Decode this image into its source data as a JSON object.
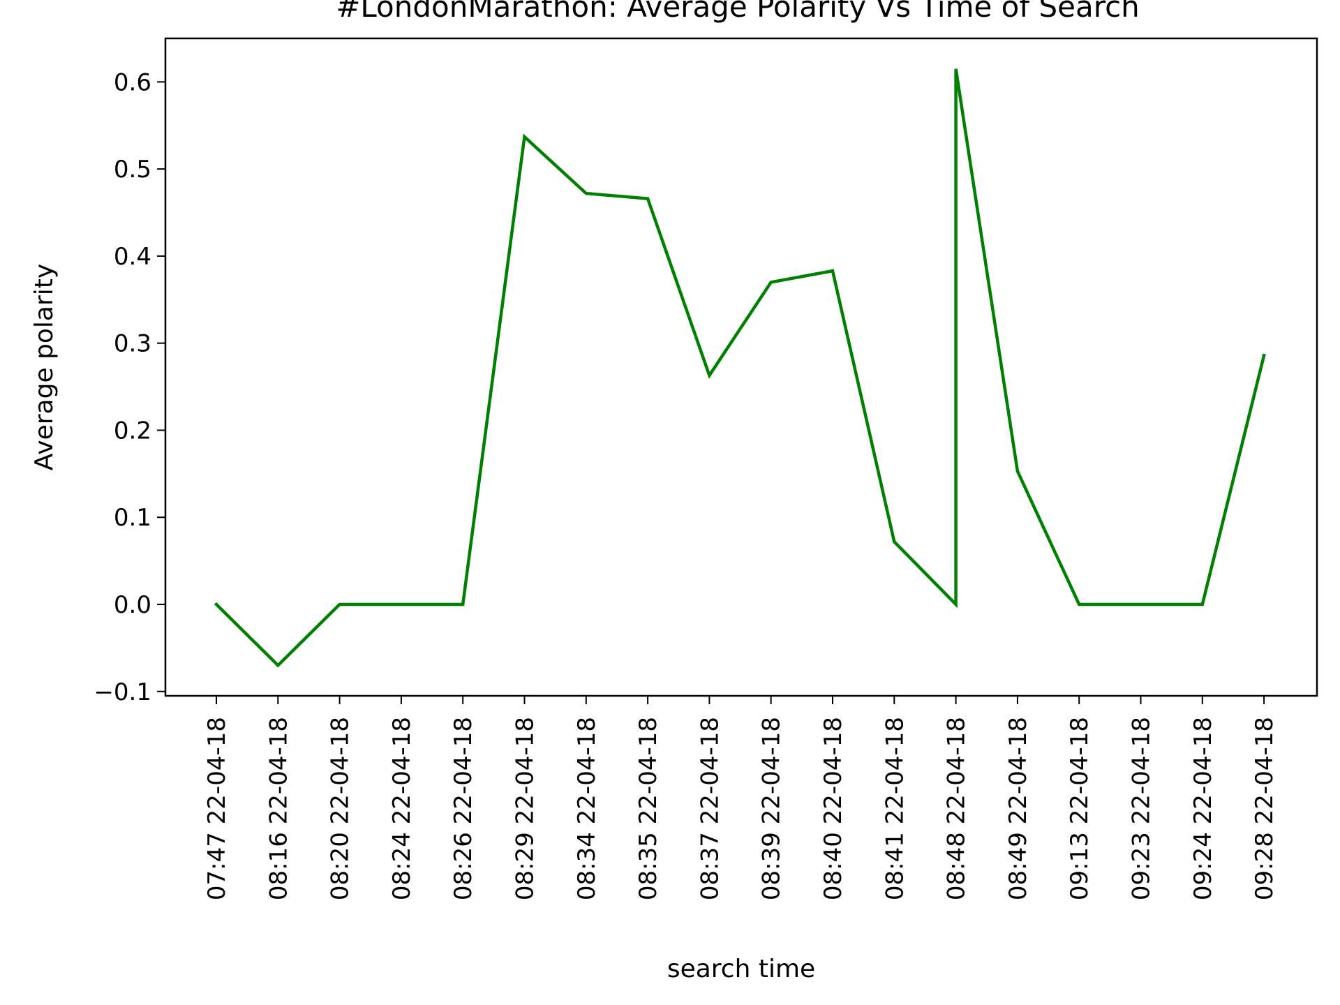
{
  "chart_data": {
    "type": "line",
    "title": "#LondonMarathon: Average Polarity Vs Time of Search",
    "xlabel": "search time",
    "ylabel": "Average polarity",
    "categories": [
      "07:47 22-04-18",
      "08:16 22-04-18",
      "08:20 22-04-18",
      "08:24 22-04-18",
      "08:26 22-04-18",
      "08:29 22-04-18",
      "08:34 22-04-18",
      "08:35 22-04-18",
      "08:37 22-04-18",
      "08:39 22-04-18",
      "08:40 22-04-18",
      "08:41 22-04-18",
      "08:48 22-04-18",
      "08:49 22-04-18",
      "09:13 22-04-18",
      "09:23 22-04-18",
      "09:24 22-04-18",
      "09:28 22-04-18"
    ],
    "points": [
      {
        "x": "07:47 22-04-18",
        "y": 0.0
      },
      {
        "x": "08:16 22-04-18",
        "y": -0.07
      },
      {
        "x": "08:20 22-04-18",
        "y": 0.0
      },
      {
        "x": "08:24 22-04-18",
        "y": 0.0
      },
      {
        "x": "08:26 22-04-18",
        "y": 0.0
      },
      {
        "x": "08:29 22-04-18",
        "y": 0.537
      },
      {
        "x": "08:34 22-04-18",
        "y": 0.472
      },
      {
        "x": "08:35 22-04-18",
        "y": 0.466
      },
      {
        "x": "08:37 22-04-18",
        "y": 0.263
      },
      {
        "x": "08:39 22-04-18",
        "y": 0.37
      },
      {
        "x": "08:40 22-04-18",
        "y": 0.383
      },
      {
        "x": "08:41 22-04-18",
        "y": 0.072
      },
      {
        "x": "08:48 22-04-18",
        "y": 0.0
      },
      {
        "x": "08:48 22-04-18",
        "y": 0.615
      },
      {
        "x": "08:49 22-04-18",
        "y": 0.153
      },
      {
        "x": "09:13 22-04-18",
        "y": 0.0
      },
      {
        "x": "09:23 22-04-18",
        "y": 0.0
      },
      {
        "x": "09:24 22-04-18",
        "y": 0.0
      },
      {
        "x": "09:28 22-04-18",
        "y": 0.286
      }
    ],
    "line_color": "#008000",
    "ylim": [
      -0.105,
      0.65
    ],
    "yticks": [
      -0.1,
      0.0,
      0.1,
      0.2,
      0.3,
      0.4,
      0.5,
      0.6
    ],
    "ytick_labels": [
      "−0.1",
      "0.0",
      "0.1",
      "0.2",
      "0.3",
      "0.4",
      "0.5",
      "0.6"
    ],
    "grid": false,
    "legend": "none"
  }
}
